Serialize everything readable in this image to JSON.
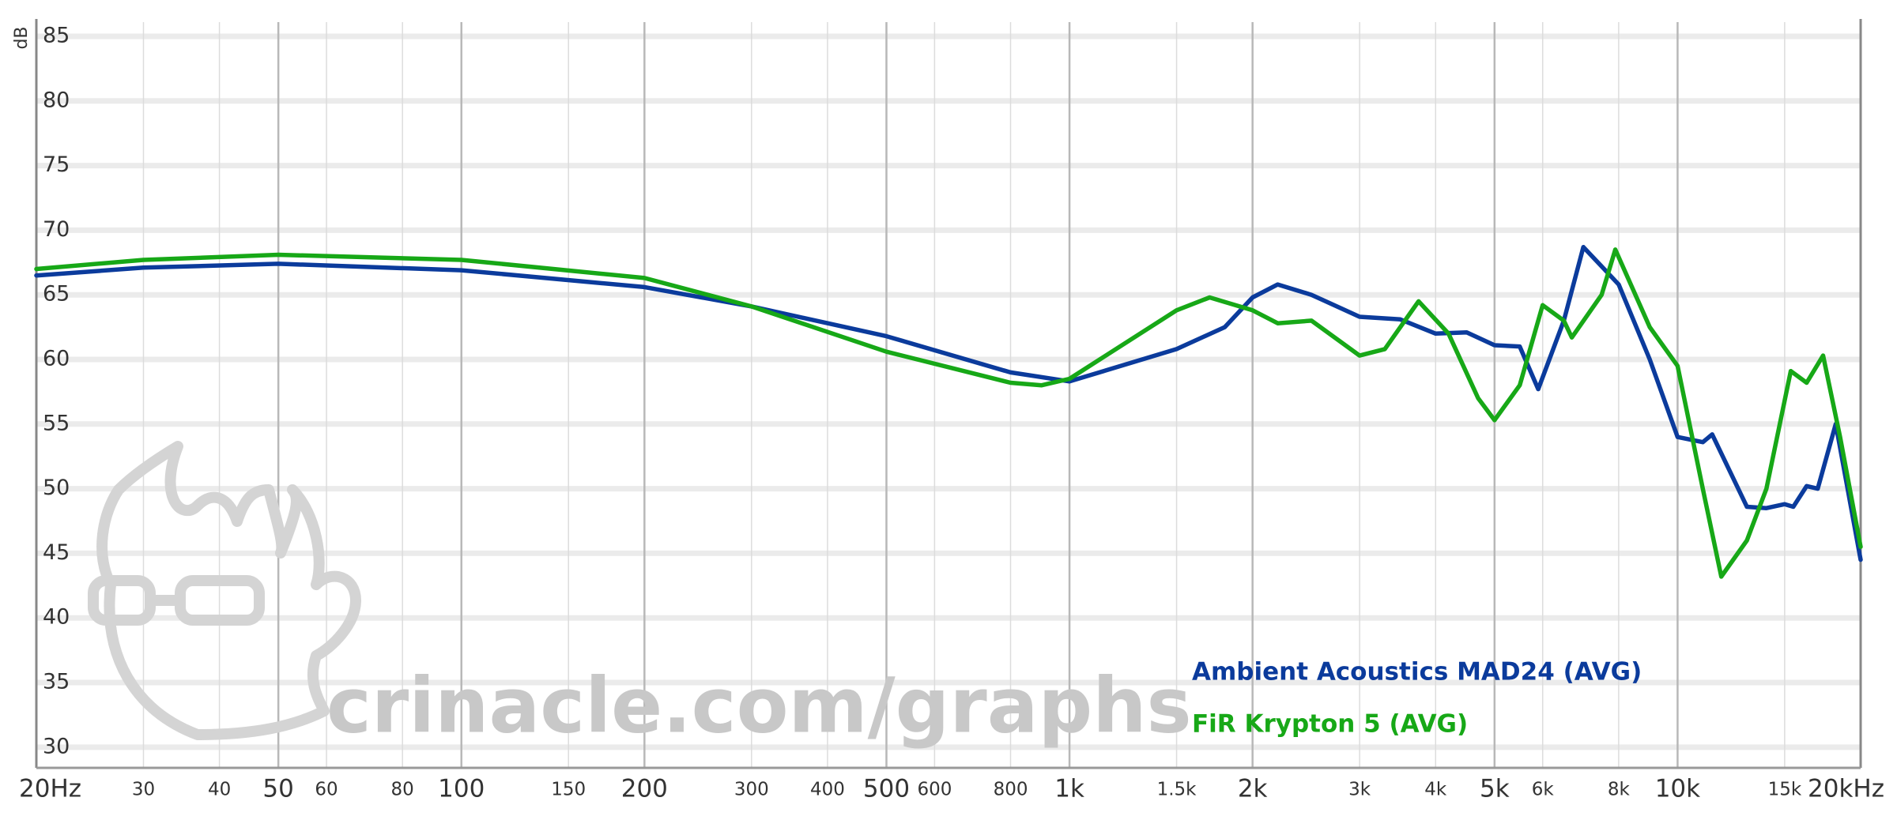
{
  "chart_data": {
    "type": "line",
    "xscale": "log",
    "ylabel": "dB",
    "watermark": "crinacle.com/graphs",
    "xlim": [
      20,
      20000
    ],
    "ylim": [
      28.4,
      86.1
    ],
    "yticks": [
      30,
      35,
      40,
      45,
      50,
      55,
      60,
      65,
      70,
      75,
      80,
      85
    ],
    "xticks": [
      {
        "value": 20,
        "label": "20Hz",
        "major": true
      },
      {
        "value": 30,
        "label": "30"
      },
      {
        "value": 40,
        "label": "40"
      },
      {
        "value": 50,
        "label": "50",
        "major": true
      },
      {
        "value": 60,
        "label": "60"
      },
      {
        "value": 80,
        "label": "80"
      },
      {
        "value": 100,
        "label": "100",
        "major": true
      },
      {
        "value": 150,
        "label": "150"
      },
      {
        "value": 200,
        "label": "200",
        "major": true
      },
      {
        "value": 300,
        "label": "300"
      },
      {
        "value": 400,
        "label": "400"
      },
      {
        "value": 500,
        "label": "500",
        "major": true
      },
      {
        "value": 600,
        "label": "600"
      },
      {
        "value": 800,
        "label": "800"
      },
      {
        "value": 1000,
        "label": "1k",
        "major": true
      },
      {
        "value": 1500,
        "label": "1.5k"
      },
      {
        "value": 2000,
        "label": "2k",
        "major": true
      },
      {
        "value": 3000,
        "label": "3k"
      },
      {
        "value": 4000,
        "label": "4k"
      },
      {
        "value": 5000,
        "label": "5k",
        "major": true
      },
      {
        "value": 6000,
        "label": "6k"
      },
      {
        "value": 8000,
        "label": "8k"
      },
      {
        "value": 10000,
        "label": "10k",
        "major": true
      },
      {
        "value": 15000,
        "label": "15k"
      },
      {
        "value": 20000,
        "label": "20kHz",
        "major": true
      }
    ],
    "grid": true,
    "series": [
      {
        "name": "Ambient Acoustics MAD24 (AVG)",
        "color": "#0b3b9c",
        "x": [
          20,
          30,
          50,
          100,
          200,
          300,
          500,
          800,
          1000,
          1500,
          1800,
          2000,
          2200,
          2500,
          3000,
          3500,
          4000,
          4500,
          5000,
          5500,
          5900,
          6500,
          7000,
          8000,
          9000,
          10000,
          11000,
          11400,
          13000,
          14000,
          15000,
          15500,
          16300,
          17000,
          18200,
          20000
        ],
        "values": [
          66.5,
          67.1,
          67.4,
          66.9,
          65.6,
          64.1,
          61.8,
          59.0,
          58.3,
          60.8,
          62.5,
          64.8,
          65.8,
          65.0,
          63.3,
          63.1,
          62.0,
          62.1,
          61.1,
          61.0,
          57.7,
          63.0,
          68.7,
          65.8,
          60.0,
          54.0,
          53.6,
          54.2,
          48.6,
          48.5,
          48.8,
          48.6,
          50.2,
          50.0,
          55.0,
          44.5
        ]
      },
      {
        "name": "FiR Krypton 5 (AVG)",
        "color": "#17a817",
        "x": [
          20,
          30,
          50,
          100,
          200,
          300,
          500,
          800,
          900,
          1000,
          1500,
          1700,
          2000,
          2200,
          2500,
          3000,
          3300,
          3750,
          4200,
          4700,
          5000,
          5500,
          6000,
          6500,
          6700,
          7500,
          7900,
          9000,
          10000,
          11000,
          11800,
          13000,
          14000,
          15350,
          16300,
          17350,
          18500,
          20000
        ],
        "values": [
          67.0,
          67.7,
          68.1,
          67.7,
          66.3,
          64.1,
          60.6,
          58.2,
          58.0,
          58.5,
          63.8,
          64.8,
          63.8,
          62.8,
          63.0,
          60.3,
          60.8,
          64.5,
          62.0,
          57.0,
          55.3,
          58.0,
          64.2,
          63.0,
          61.7,
          65.0,
          68.5,
          62.5,
          59.5,
          50.0,
          43.2,
          46.0,
          50.0,
          59.1,
          58.2,
          60.3,
          54.0,
          45.5
        ]
      }
    ]
  }
}
